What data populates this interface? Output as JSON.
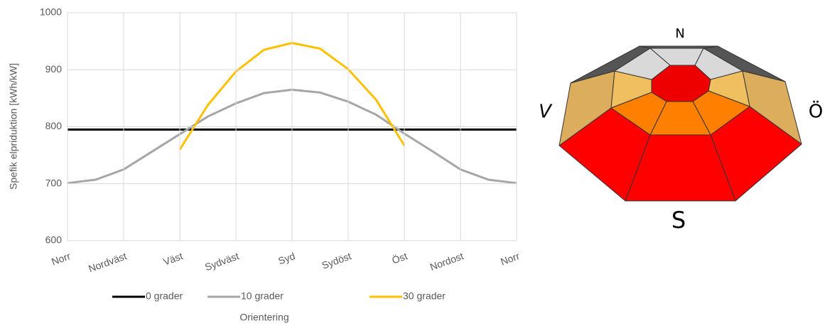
{
  "chart_data": {
    "type": "line",
    "y_label": "Spefik elpriduktion  [kWh/kW]",
    "x_label": "Orientering",
    "categories": [
      "Norr",
      null,
      "Nordväst",
      null,
      "Väst",
      null,
      "Sydväst",
      null,
      "Syd",
      null,
      "Sydöst",
      null,
      "Öst",
      null,
      "Nordost",
      null,
      "Norr"
    ],
    "series": [
      {
        "name": "0 grader",
        "color": "#000000",
        "values": [
          795,
          795,
          795,
          795,
          795,
          795,
          795,
          795,
          795,
          795,
          795,
          795,
          795,
          795,
          795,
          795,
          795
        ]
      },
      {
        "name": "10 grader",
        "color": "#a6a6a6",
        "values": [
          701,
          707,
          725,
          756,
          787,
          818,
          841,
          859,
          865,
          860,
          844,
          821,
          788,
          757,
          725,
          707,
          701
        ]
      },
      {
        "name": "30 grader",
        "color": "#ffc000",
        "values": [
          null,
          null,
          null,
          null,
          760,
          838,
          897,
          935,
          947,
          937,
          901,
          847,
          767,
          null,
          null,
          null,
          null
        ]
      }
    ],
    "ylim": [
      600,
      1000
    ],
    "yticks": [
      600,
      700,
      800,
      900,
      1000
    ],
    "grid": true,
    "legend": "bottom"
  },
  "diagram": {
    "north": "N",
    "west": "V",
    "east": "Ö",
    "south": "S"
  }
}
